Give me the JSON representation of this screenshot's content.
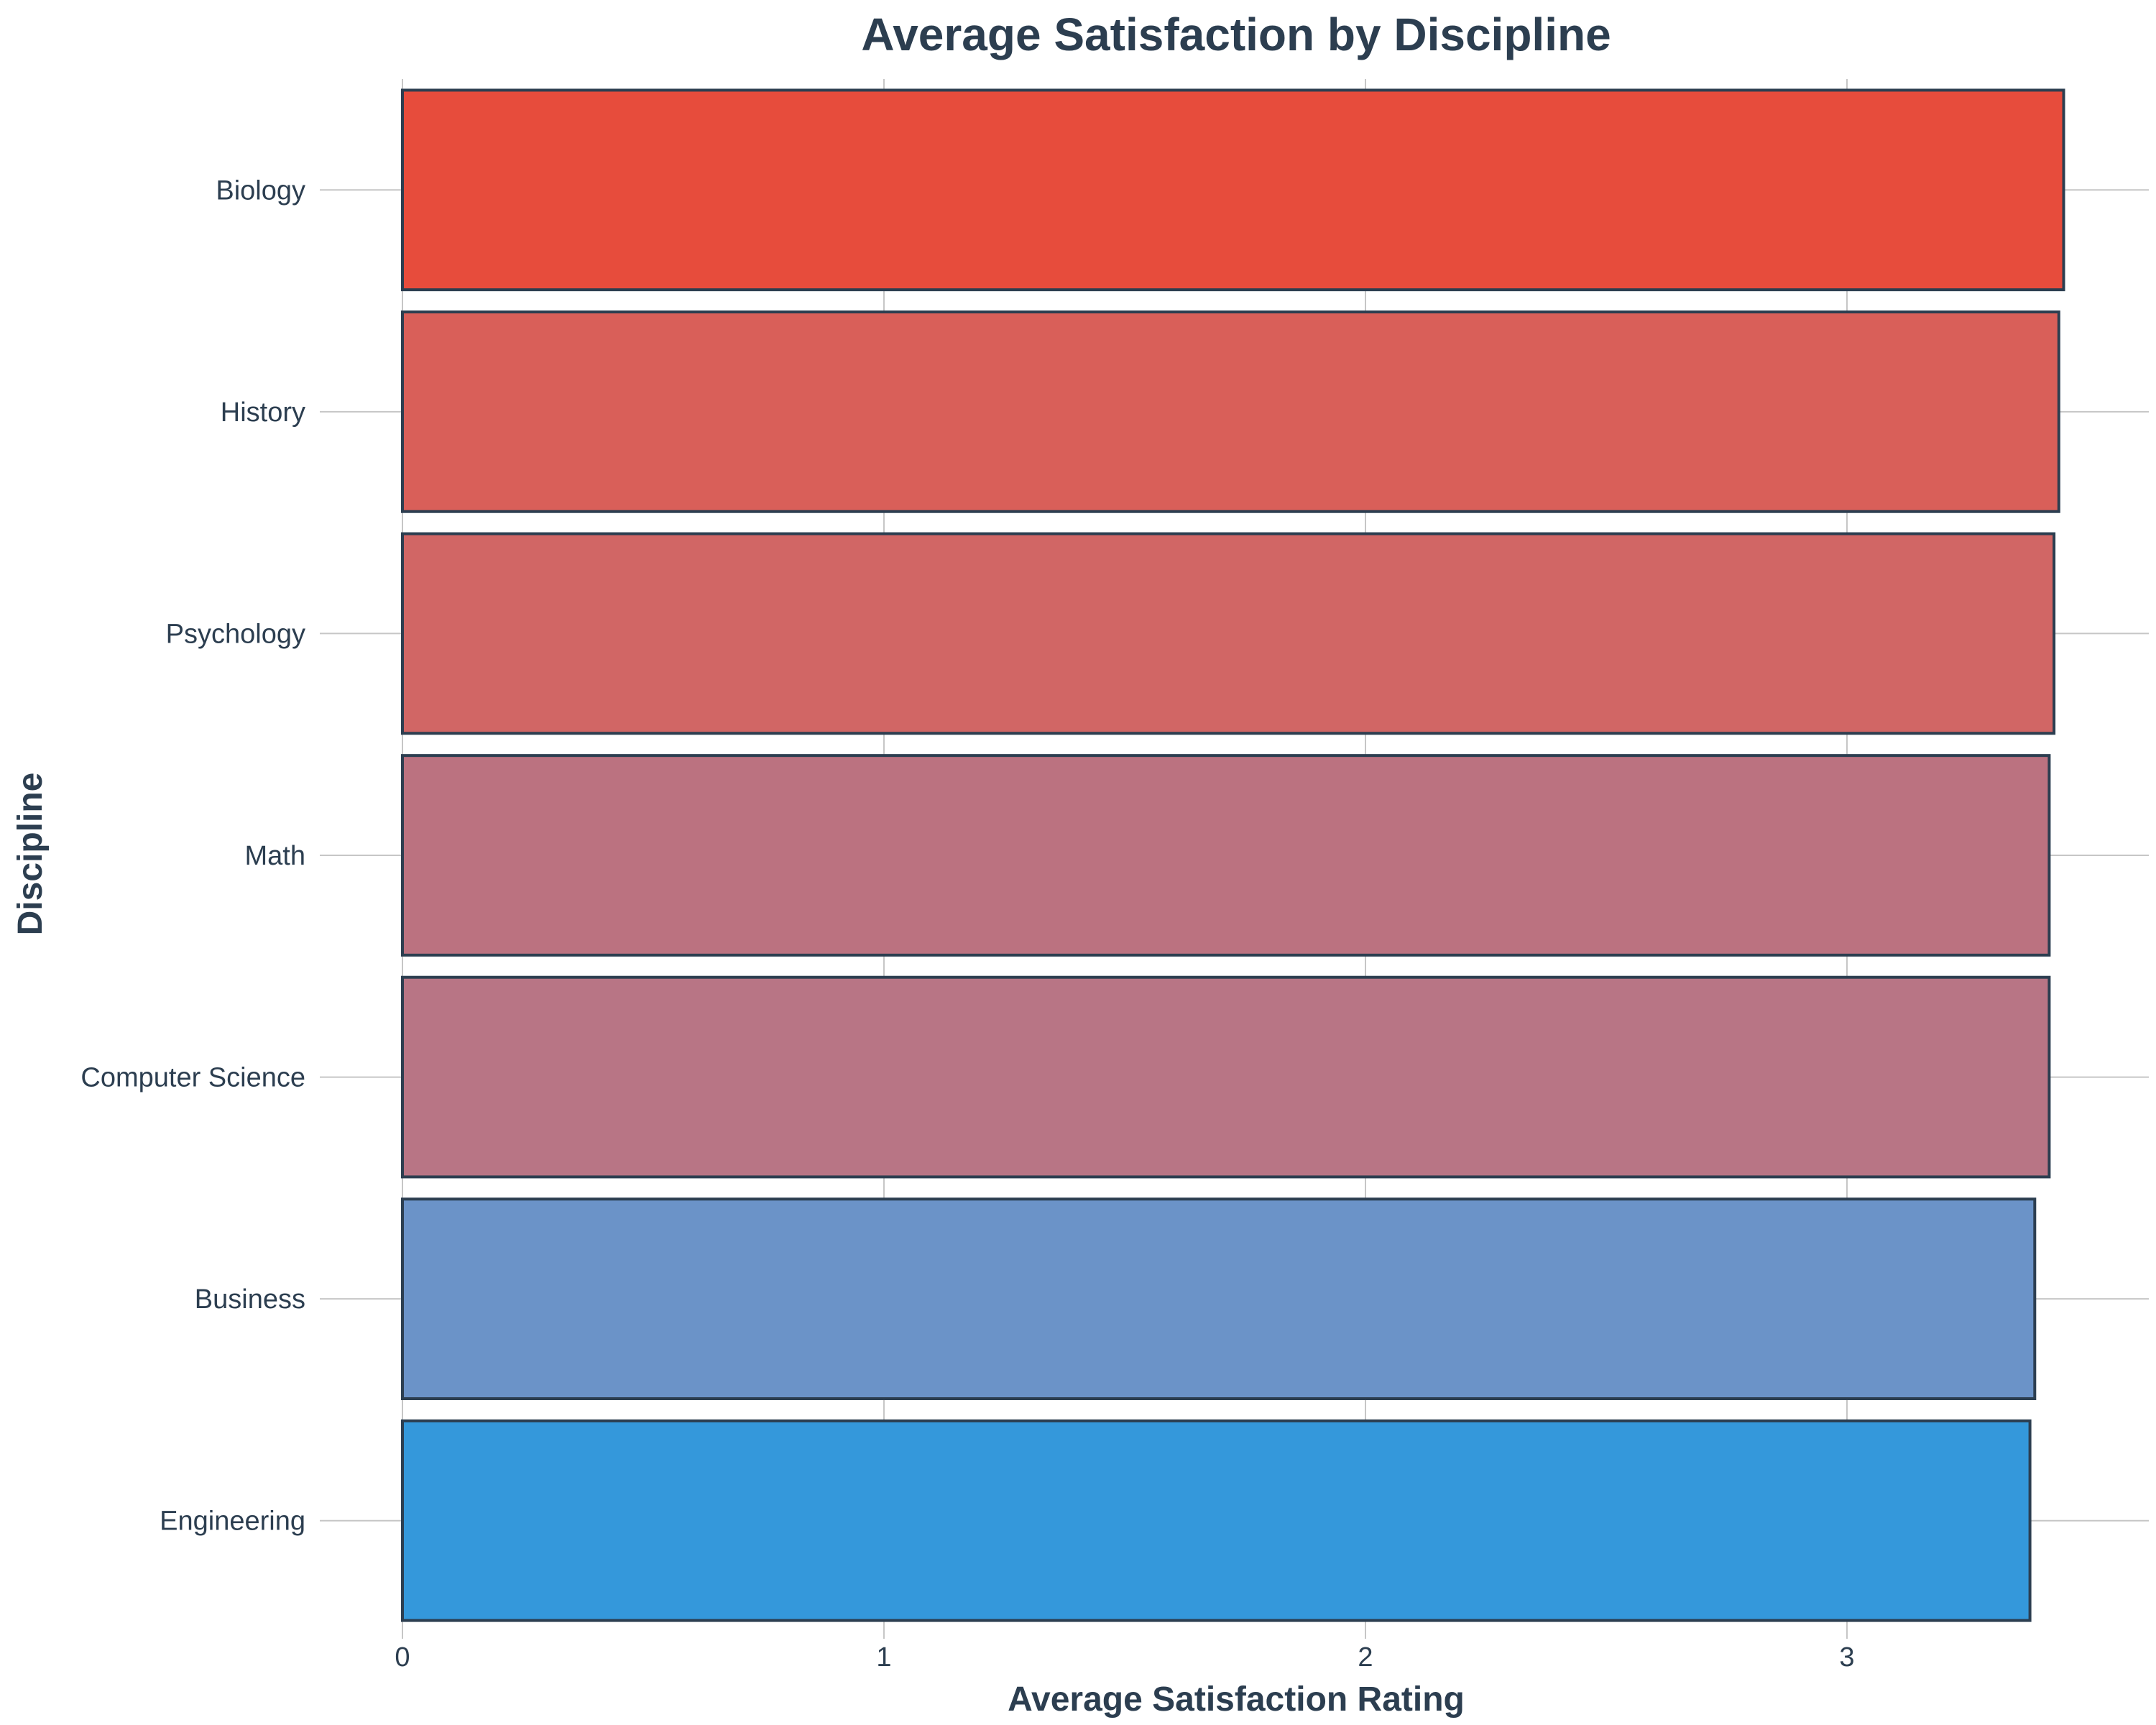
{
  "chart_data": {
    "type": "bar",
    "orientation": "horizontal",
    "title": "Average Satisfaction by Discipline",
    "xlabel": "Average Satisfaction Rating",
    "ylabel": "Discipline",
    "xlim": [
      0,
      3.5
    ],
    "xticks": [
      "0",
      "1",
      "2",
      "3"
    ],
    "grid": true,
    "categories": [
      "Biology",
      "History",
      "Psychology",
      "Math",
      "Computer Science",
      "Business",
      "Engineering"
    ],
    "values": [
      3.45,
      3.44,
      3.43,
      3.42,
      3.42,
      3.39,
      3.38
    ],
    "colors": [
      "#e74c3c",
      "#d95f59",
      "#d16665",
      "#bb7280",
      "#b87585",
      "#6b93c8",
      "#3498db"
    ],
    "edge_color": "#2c3e50"
  }
}
